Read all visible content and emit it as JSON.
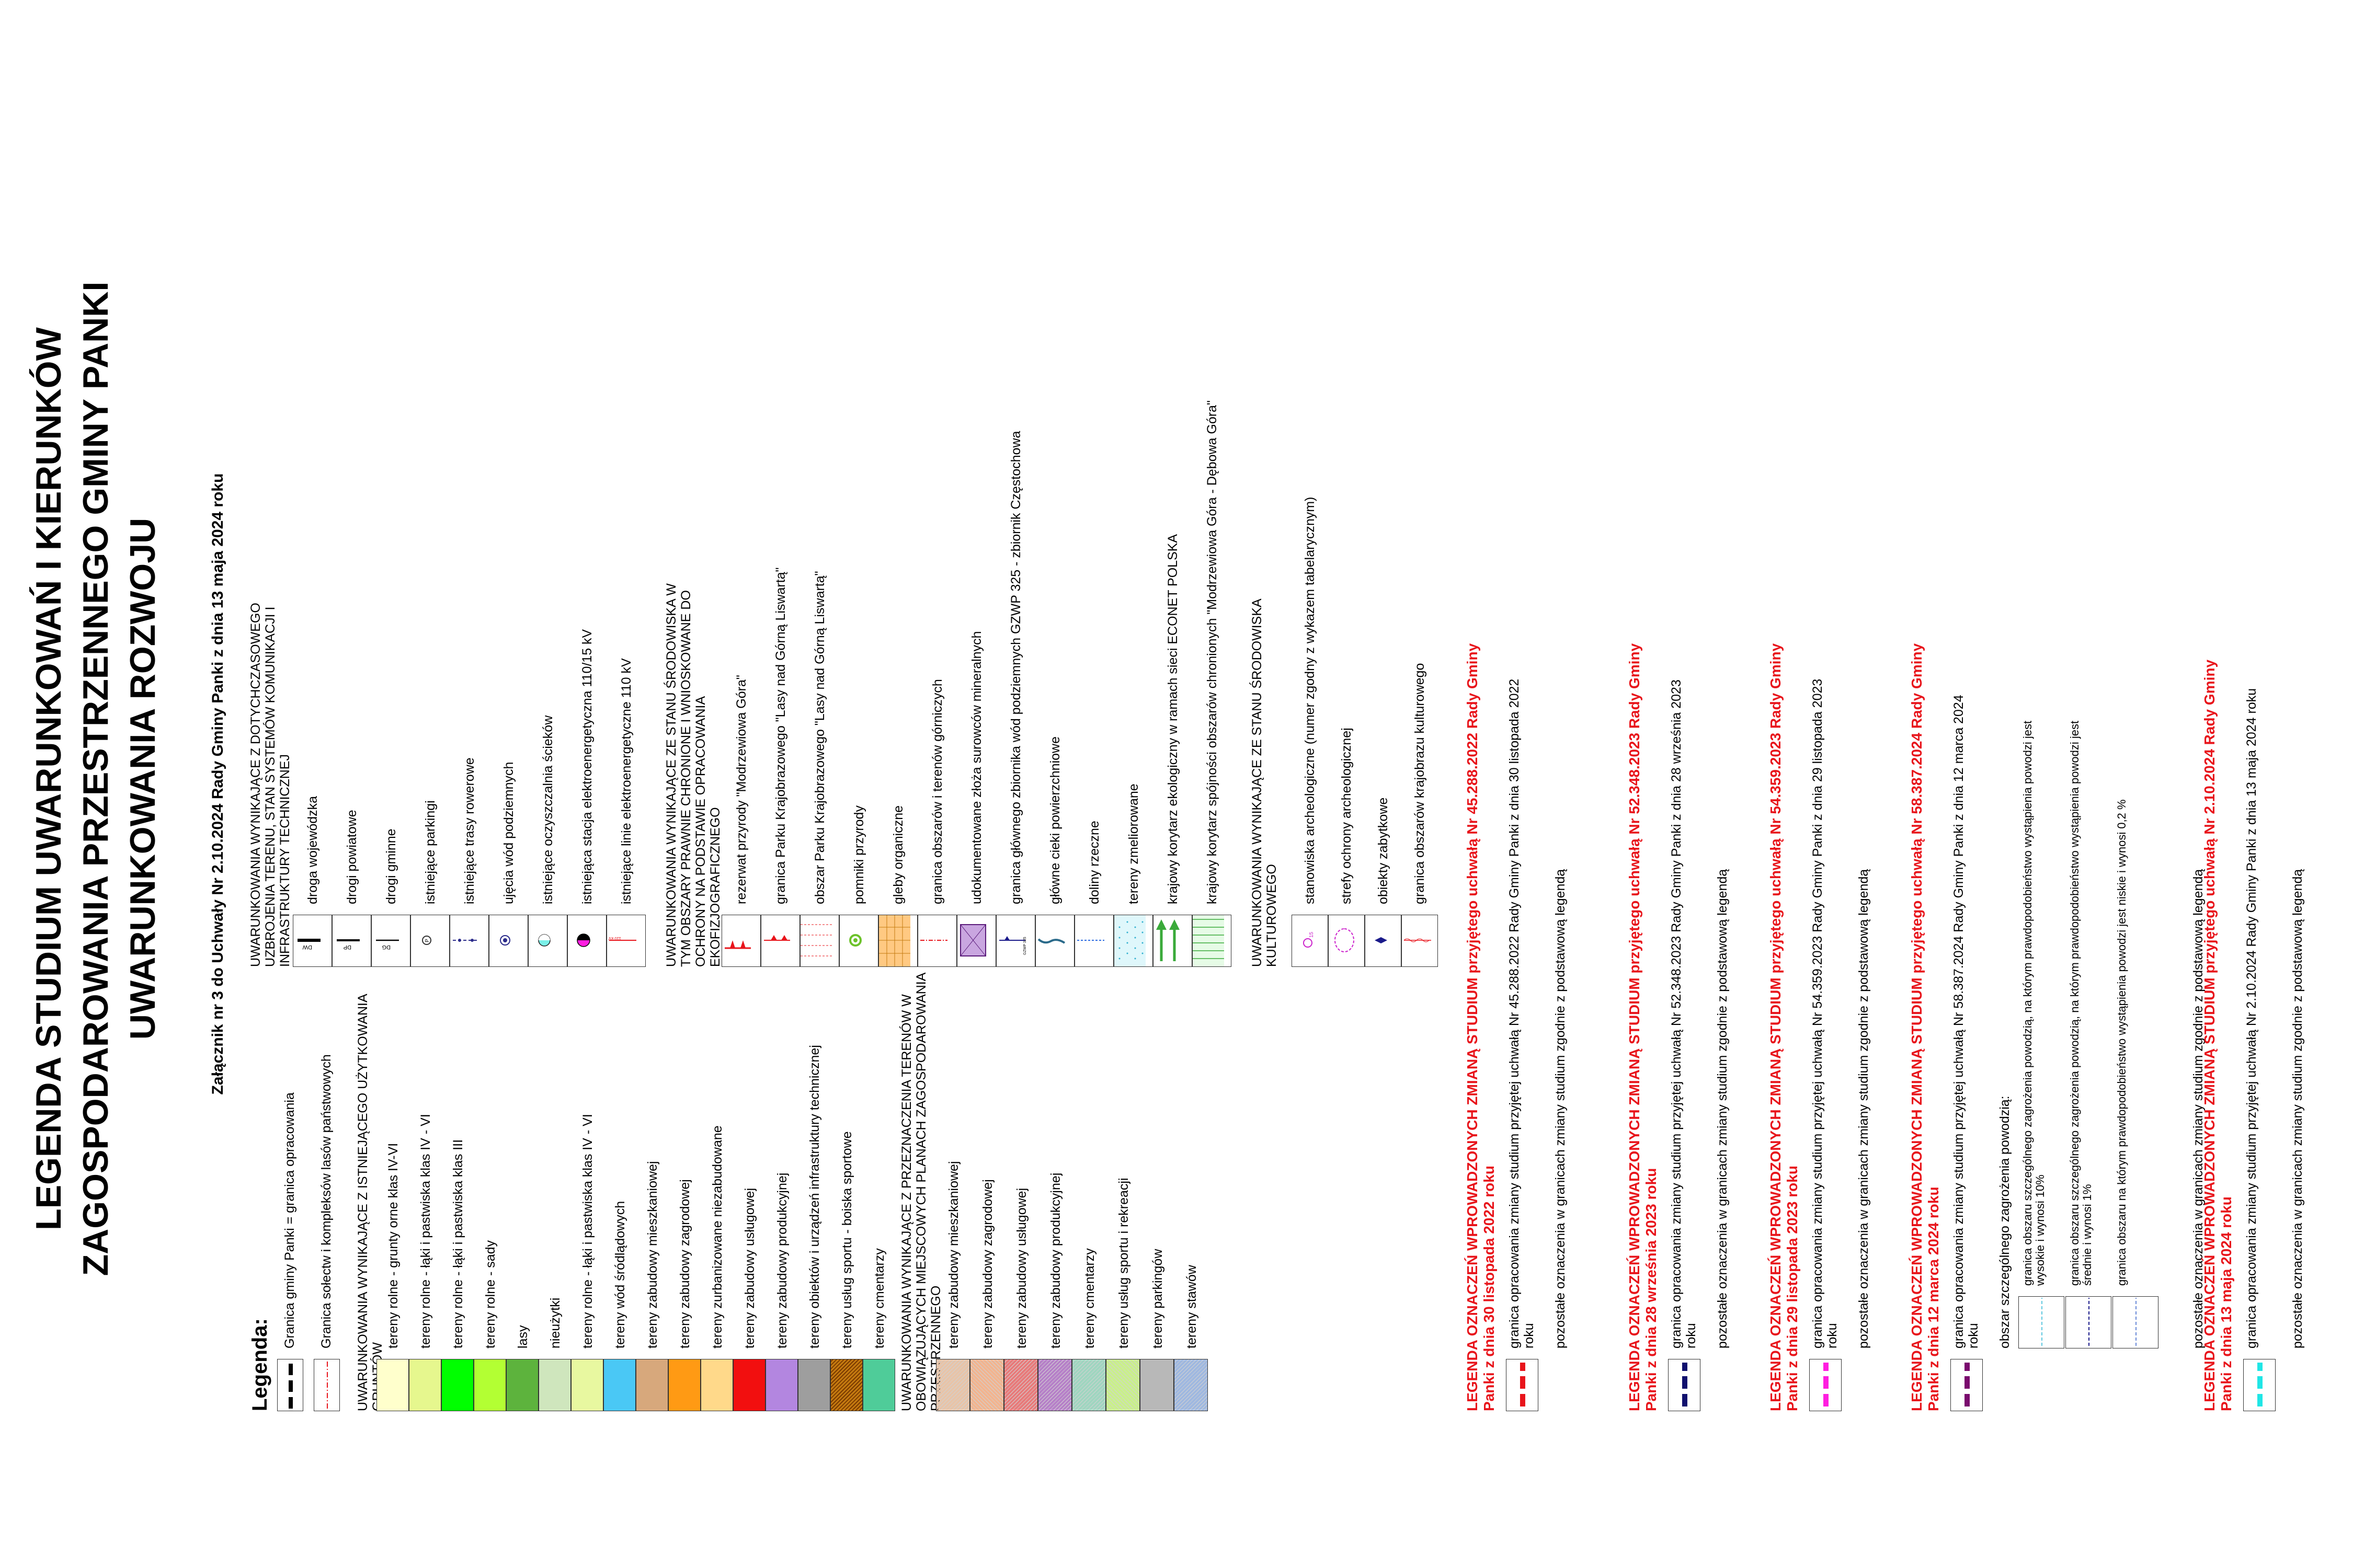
{
  "title": {
    "line1": "LEGENDA STUDIUM UWARUNKOWAŃ I KIERUNKÓW",
    "line2": "ZAGOSPODAROWANIA PRZESTRZENNEGO GMINY PANKI",
    "line3": "UWARUNKOWANIA ROZWOJU"
  },
  "attachment": "Załącznik nr 3 do Uchwały  Nr 2.10.2024 Rady Gminy Panki z dnia  13 maja 2024 roku",
  "legend_label": "Legenda:",
  "col1": {
    "boundary_gmina": "Granica gminy Panki  =  granica opracowania",
    "boundary_solectw": "Granica sołectw i kompleksów lasów państwowych",
    "header_existing": "UWARUNKOWANIA WYNIKAJĄCE Z ISTNIEJĄCEGO UŻYTKOWANIA GRUNTÓW",
    "existing": [
      {
        "label": "tereny rolne - grunty orne klas IV-VI",
        "color": "#ffffcc"
      },
      {
        "label": "tereny rolne - łąki i pastwiska klas IV - VI",
        "color": "#e6f78e"
      },
      {
        "label": "tereny rolne - łąki i pastwiska klas III",
        "color": "#00ff00"
      },
      {
        "label": "tereny rolne - sady",
        "color": "#b3ff33"
      },
      {
        "label": "lasy",
        "color": "#5db33d"
      },
      {
        "label": "nieużytki",
        "color": "#cfe6bd"
      },
      {
        "label": "tereny rolne - łąki i pastwiska klas IV - VI",
        "color": "#e8f8a0"
      },
      {
        "label": "tereny wód śródlądowych",
        "color": "#4ac8f5"
      },
      {
        "label": "tereny zabudowy mieszkaniowej",
        "color": "#d7a87c"
      },
      {
        "label": "tereny zabudowy zagrodowej",
        "color": "#ff9a14"
      },
      {
        "label": "tereny zurbanizowane niezabudowane",
        "color": "#ffd98a"
      },
      {
        "label": "tereny zabudowy usługowej",
        "color": "#f20f0f"
      },
      {
        "label": "tereny zabudowy produkcyjnej",
        "color": "#b386e0"
      },
      {
        "label": "tereny obiektów i urządzeń infrastruktury technicznej",
        "color": "#9e9e9e"
      },
      {
        "label": "tereny usług sportu - boiska sportowe",
        "color": "#c47a10"
      },
      {
        "label": "tereny cmentarzy",
        "color": "#4fcc99"
      }
    ],
    "header_planned": "UWARUNKOWANIA WYNIKAJĄCE Z PRZEZNACZENIA  TERENÓW W OBOWIĄZUJĄCYCH MIEJSCOWYCH PLANACH ZAGOSPODAROWANIA PRZESTRZENNEGO",
    "planned": [
      {
        "label": "tereny zabudowy mieszkaniowej",
        "color": "#e8c4a8"
      },
      {
        "label": "tereny zabudowy zagrodowej",
        "color": "#f2b48f"
      },
      {
        "label": "tereny zabudowy usługowej",
        "color": "#e87a7a"
      },
      {
        "label": "tereny zabudowy produkcyjnej",
        "color": "#b680c8"
      },
      {
        "label": "tereny cmentarzy",
        "color": "#9fd6c0"
      },
      {
        "label": "tereny usług sportu i rekreacji",
        "color": "#c9f08a"
      },
      {
        "label": "tereny parkingów",
        "color": "#b8b8b8"
      },
      {
        "label": "tereny stawów",
        "color": "#9fb8e0"
      }
    ]
  },
  "col2": {
    "header_infra": "UWARUNKOWANIA WYNIKAJĄCE Z DOTYCHCZASOWEGO UZBROJENIA TERENU, STAN SYSTEMÓW KOMUNIKACJI I INFRASTRUKTURY TECHNICZNEJ",
    "infra": [
      {
        "label": "droga wojewódzka",
        "code": "DW"
      },
      {
        "label": "drogi powiatowe",
        "code": "DP"
      },
      {
        "label": "drogi gminne",
        "code": "DG"
      },
      {
        "label": "istniejące parkingi",
        "code": "P"
      },
      {
        "label": "istniejące trasy rowerowe",
        "code": ""
      },
      {
        "label": "ujęcia wód podziemnych",
        "code": ""
      },
      {
        "label": "istniejące oczyszczalnia ścieków",
        "code": ""
      },
      {
        "label": "istniejąca stacja elektroenergetyczna 110/15 kV",
        "code": ""
      },
      {
        "label": "istniejące linie elektroenergetyczne 110 kV",
        "code": "110 kV"
      }
    ],
    "header_env": "UWARUNKOWANIA WYNIKAJĄCE ZE STANU ŚRODOWISKA W TYM OBSZARY PRAWNIE CHRONIONE I WNIOSKOWANE DO OCHRONY NA PODSTAWIE OPRACOWANIA EKOFIZJOGRAFICZNEGO",
    "env": [
      {
        "label": "rezerwat przyrody \"Modrzewiowa Góra\"",
        "code": ""
      },
      {
        "label": "granica Parku Krajobrazowego \"Lasy nad Górną Liswartą\"",
        "code": ""
      },
      {
        "label": "obszar Parku Krajobrazowego \"Lasy nad Górną Liswartą\"",
        "code": ""
      },
      {
        "label": "pomniki przyrody",
        "code": ""
      },
      {
        "label": "gleby organiczne",
        "code": ""
      },
      {
        "label": "granica obszarów i terenów górniczych",
        "code": ""
      },
      {
        "label": "udokumentowane złoża surowców mineralnych",
        "code": ""
      },
      {
        "label": "granica głównego zbiornika wód podziemnych GZWP 325 - zbiornik Częstochowa",
        "code": "GZWP 325"
      },
      {
        "label": "główne cieki powierzchniowe",
        "code": ""
      },
      {
        "label": "doliny rzeczne",
        "code": ""
      },
      {
        "label": "tereny zmeliorowane",
        "code": ""
      },
      {
        "label": "krajowy korytarz ekologiczny w ramach sieci ECONET POLSKA",
        "code": ""
      },
      {
        "label": "krajowy korytarz spójności obszarów chronionych \"Modrzewiowa Góra - Dębowa Góra\"",
        "code": ""
      }
    ],
    "header_culture": "UWARUNKOWANIA WYNIKAJĄCE ZE STANU ŚRODOWISKA KULTUROWEGO",
    "culture": [
      {
        "label": "stanowiska archeologiczne (numer zgodny z wykazem tabelarycznym)",
        "code": "15"
      },
      {
        "label": "strefy ochrony archeologicznej",
        "code": ""
      },
      {
        "label": "obiekty zabytkowe",
        "code": ""
      },
      {
        "label": "granica obszarów krajobrazu kulturowego",
        "code": ""
      }
    ]
  },
  "col3": {
    "sections": [
      {
        "title": "LEGENDA OZNACZEŃ WPROWADZONYCH ZMIANĄ STUDIUM przyjętego uchwałą Nr 45.288.2022 Rady Gminy Panki z dnia 30 listopada 2022 roku",
        "boundary": "granica opracowania zmiany studium przyjętej uchwałą Nr 45.288.2022 Rady Gminy Panki z dnia 30 listopada 2022 roku",
        "other": "pozostałe oznaczenia w granicach zmiany studium zgodnie z podstawową legendą",
        "color": "#e8141b"
      },
      {
        "title": "LEGENDA OZNACZEŃ WPROWADZONYCH ZMIANĄ STUDIUM przyjętego uchwałą Nr 52.348.2023 Rady Gminy Panki z dnia 28 września 2023 roku",
        "boundary": "granica opracowania zmiany studium przyjętej uchwałą Nr 52.348.2023 Rady Gminy Panki z dnia 28 września 2023 roku",
        "other": "pozostałe oznaczenia w granicach zmiany studium zgodnie z podstawową legendą",
        "color": "#10106e"
      },
      {
        "title": "LEGENDA OZNACZEŃ WPROWADZONYCH ZMIANĄ STUDIUM przyjętego uchwałą Nr 54.359.2023 Rady Gminy Panki z dnia 29 listopada 2023 roku",
        "boundary": "granica opracowania zmiany studium przyjętej uchwałą Nr 54.359.2023 Rady Gminy Panki z dnia 29 listopada 2023 roku",
        "other": "pozostałe oznaczenia w granicach zmiany studium zgodnie z podstawową legendą",
        "color": "#ff1ee0"
      },
      {
        "title": "LEGENDA OZNACZEŃ WPROWADZONYCH ZMIANĄ STUDIUM przyjętego uchwałą Nr 58.387.2024 Rady Gminy Panki z dnia 12 marca 2024 roku",
        "boundary": "granica opracowania zmiany studium przyjętej uchwałą Nr 58.387.2024 Rady Gminy Panki z dnia 12 marca 2024 roku",
        "other": "pozostałe oznaczenia w granicach zmiany studium zgodnie z podstawową legendą",
        "color": "#7a0a6e",
        "flood_header": "obszar szczególnego zagrożenia powodzią:",
        "flood": [
          "granica obszaru szczególnego zagrożenia powodzią, na którym prawdopodobieństwo wystąpienia powodzi jest wysokie i wynosi 10%",
          "granica obszaru szczególnego zagrożenia powodzią, na którym prawdopodobieństwo wystąpienia powodzi jest średnie i wynosi 1%",
          "granica obszaru na którym prawdopodobieństwo wystąpienia powodzi jest niskie i wynosi 0,2 %"
        ]
      },
      {
        "title": "LEGENDA OZNACZEŃ WPROWADZONYCH ZMIANĄ STUDIUM przyjętego uchwałą Nr 2.10.2024 Rady Gminy Panki z dnia 13 maja 2024 roku",
        "boundary": "granica opracowania zmiany studium przyjętej uchwałą Nr 2.10.2024 Rady Gminy Panki z dnia 13 maja 2024 roku",
        "other": "pozostałe oznaczenia w granicach zmiany studium zgodnie z podstawową legendą",
        "color": "#20e6e6"
      }
    ]
  }
}
